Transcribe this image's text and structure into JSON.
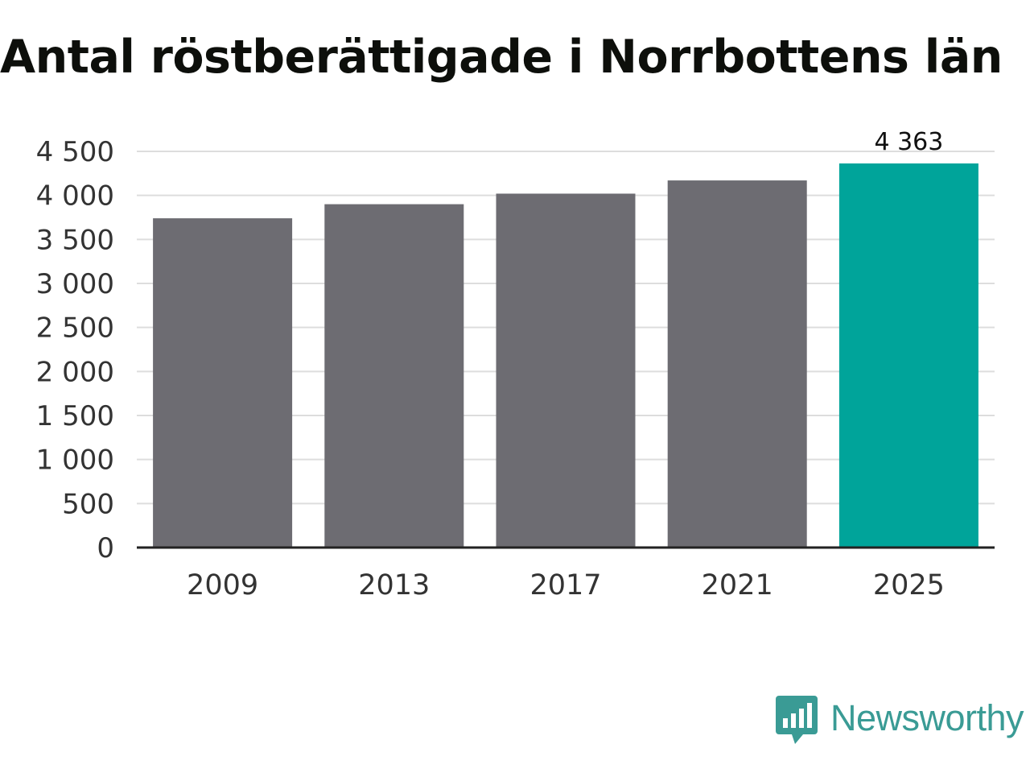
{
  "title": "Antal röstberättigade i Norrbottens län",
  "brand": {
    "name": "Newsworthy",
    "icon": "newsworthy-logo-icon",
    "color": "#3a9b95"
  },
  "chart_data": {
    "type": "bar",
    "title": "Antal röstberättigade i Norrbottens län",
    "xlabel": "",
    "ylabel": "",
    "categories": [
      "2009",
      "2013",
      "2017",
      "2021",
      "2025"
    ],
    "values": [
      3740,
      3900,
      4020,
      4170,
      4363
    ],
    "data_labels": [
      "",
      "",
      "",
      "",
      "4 363"
    ],
    "ylim": [
      0,
      4500
    ],
    "yticks": [
      0,
      500,
      1000,
      1500,
      2000,
      2500,
      3000,
      3500,
      4000,
      4500
    ],
    "ytick_labels": [
      "0",
      "500",
      "1 000",
      "1 500",
      "2 000",
      "2 500",
      "3 000",
      "3 500",
      "4 000",
      "4 500"
    ],
    "grid": true,
    "legend": "none",
    "colors": {
      "default": "#6d6c72",
      "highlight": "#00a49a",
      "grid": "#dddddd",
      "axis": "#222222",
      "text": "#333333"
    },
    "highlight_index": 4
  }
}
